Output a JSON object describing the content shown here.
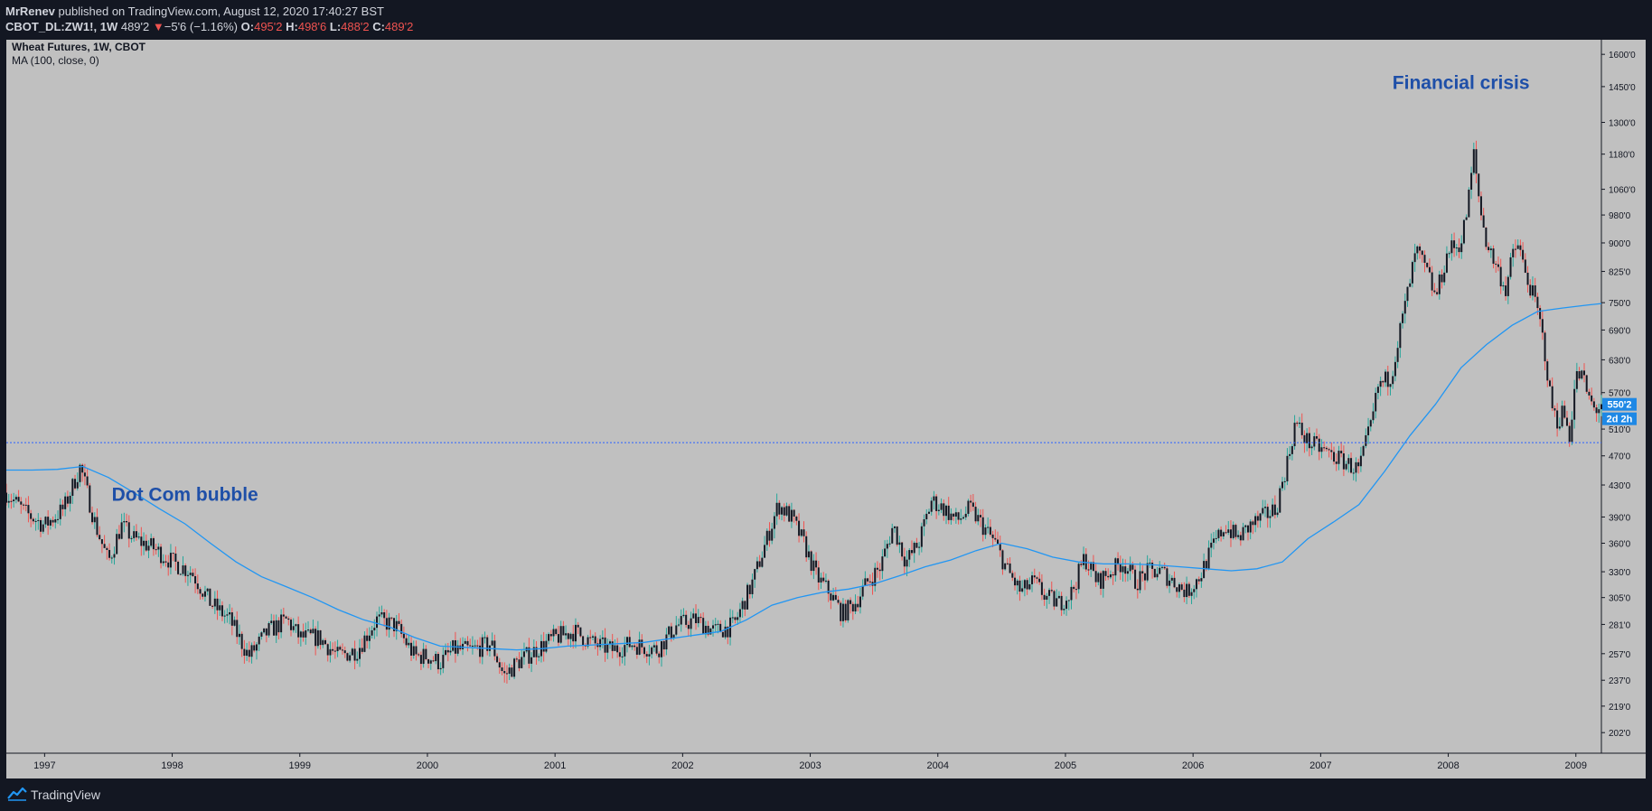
{
  "header": {
    "author": "MrRenev",
    "published_text": "published on TradingView.com, August 12, 2020 17:40:27 BST",
    "symbol": "CBOT_DL:ZW1!, 1W",
    "last_price": "489'2",
    "change_arrow": "▼",
    "change": "−5'6 (−1.16%)",
    "o_label": "O:",
    "o_value": "495'2",
    "h_label": "H:",
    "h_value": "498'6",
    "l_label": "L:",
    "l_value": "488'2",
    "c_label": "C:",
    "c_value": "489'2"
  },
  "legend": {
    "title": "Wheat Futures, 1W, CBOT",
    "indicator": "MA (100, close, 0)"
  },
  "footer": {
    "brand": "TradingView"
  },
  "colors": {
    "background": "#131722",
    "plot_bg": "#c0c0c0",
    "candle": "#131722",
    "candle_wick_up": "#26a69a",
    "candle_wick_down": "#ef5350",
    "ma_line": "#2196f3",
    "annotation": "#1e4fa8",
    "price_badge": "#1e88e5",
    "dotted_line": "#2962ff"
  },
  "chart_data": {
    "type": "candlestick",
    "title": "Wheat Futures, 1W, CBOT",
    "y_scale": "log",
    "y_ticks": [
      "1600'0",
      "1450'0",
      "1300'0",
      "1180'0",
      "1060'0",
      "980'0",
      "900'0",
      "825'0",
      "750'0",
      "690'0",
      "630'0",
      "570'0",
      "510'0",
      "470'0",
      "430'0",
      "390'0",
      "360'0",
      "330'0",
      "305'0",
      "281'0",
      "257'0",
      "237'0",
      "219'0",
      "202'0"
    ],
    "x_ticks": [
      "1997",
      "1998",
      "1999",
      "2000",
      "2001",
      "2002",
      "2003",
      "2004",
      "2005",
      "2006",
      "2007",
      "2008",
      "2009"
    ],
    "x_range": [
      1996.7,
      2009.2
    ],
    "y_range": [
      195,
      1650
    ],
    "current_price_line": 489.25,
    "price_badge_value": "550'2",
    "countdown_badge": "2d 2h",
    "annotations": [
      {
        "text": "Dot Com bubble",
        "x": 1998.1,
        "y": 410
      },
      {
        "text": "Financial crisis",
        "x": 2008.1,
        "y": 1440
      }
    ],
    "close_series": [
      [
        1996.7,
        420
      ],
      [
        1996.85,
        395
      ],
      [
        1997.0,
        380
      ],
      [
        1997.15,
        400
      ],
      [
        1997.28,
        455
      ],
      [
        1997.4,
        380
      ],
      [
        1997.5,
        340
      ],
      [
        1997.6,
        380
      ],
      [
        1997.7,
        365
      ],
      [
        1997.85,
        355
      ],
      [
        1998.0,
        340
      ],
      [
        1998.15,
        330
      ],
      [
        1998.3,
        300
      ],
      [
        1998.45,
        285
      ],
      [
        1998.6,
        255
      ],
      [
        1998.75,
        275
      ],
      [
        1998.9,
        285
      ],
      [
        1999.0,
        270
      ],
      [
        1999.15,
        270
      ],
      [
        1999.3,
        255
      ],
      [
        1999.45,
        260
      ],
      [
        1999.6,
        285
      ],
      [
        1999.75,
        280
      ],
      [
        1999.9,
        255
      ],
      [
        2000.0,
        255
      ],
      [
        2000.1,
        250
      ],
      [
        2000.2,
        260
      ],
      [
        2000.35,
        260
      ],
      [
        2000.5,
        265
      ],
      [
        2000.6,
        240
      ],
      [
        2000.7,
        250
      ],
      [
        2000.85,
        260
      ],
      [
        2001.0,
        270
      ],
      [
        2001.15,
        275
      ],
      [
        2001.3,
        265
      ],
      [
        2001.45,
        260
      ],
      [
        2001.6,
        265
      ],
      [
        2001.8,
        260
      ],
      [
        2001.95,
        280
      ],
      [
        2002.1,
        285
      ],
      [
        2002.25,
        275
      ],
      [
        2002.4,
        280
      ],
      [
        2002.55,
        320
      ],
      [
        2002.65,
        360
      ],
      [
        2002.75,
        405
      ],
      [
        2002.85,
        390
      ],
      [
        2002.95,
        360
      ],
      [
        2003.05,
        325
      ],
      [
        2003.15,
        310
      ],
      [
        2003.25,
        290
      ],
      [
        2003.35,
        300
      ],
      [
        2003.45,
        320
      ],
      [
        2003.55,
        335
      ],
      [
        2003.65,
        380
      ],
      [
        2003.75,
        340
      ],
      [
        2003.85,
        360
      ],
      [
        2003.95,
        410
      ],
      [
        2004.05,
        400
      ],
      [
        2004.15,
        385
      ],
      [
        2004.25,
        400
      ],
      [
        2004.35,
        380
      ],
      [
        2004.45,
        360
      ],
      [
        2004.55,
        330
      ],
      [
        2004.65,
        310
      ],
      [
        2004.75,
        320
      ],
      [
        2004.85,
        305
      ],
      [
        2004.95,
        300
      ],
      [
        2005.05,
        310
      ],
      [
        2005.15,
        345
      ],
      [
        2005.25,
        320
      ],
      [
        2005.35,
        330
      ],
      [
        2005.45,
        340
      ],
      [
        2005.55,
        320
      ],
      [
        2005.65,
        330
      ],
      [
        2005.75,
        330
      ],
      [
        2005.85,
        320
      ],
      [
        2005.95,
        310
      ],
      [
        2006.05,
        325
      ],
      [
        2006.15,
        355
      ],
      [
        2006.25,
        380
      ],
      [
        2006.35,
        365
      ],
      [
        2006.45,
        380
      ],
      [
        2006.55,
        390
      ],
      [
        2006.65,
        400
      ],
      [
        2006.75,
        470
      ],
      [
        2006.8,
        520
      ],
      [
        2006.9,
        490
      ],
      [
        2007.0,
        480
      ],
      [
        2007.1,
        470
      ],
      [
        2007.2,
        460
      ],
      [
        2007.3,
        450
      ],
      [
        2007.4,
        520
      ],
      [
        2007.45,
        580
      ],
      [
        2007.55,
        600
      ],
      [
        2007.6,
        660
      ],
      [
        2007.7,
        800
      ],
      [
        2007.75,
        880
      ],
      [
        2007.85,
        810
      ],
      [
        2007.9,
        760
      ],
      [
        2008.0,
        880
      ],
      [
        2008.1,
        900
      ],
      [
        2008.15,
        1000
      ],
      [
        2008.2,
        1180
      ],
      [
        2008.25,
        1000
      ],
      [
        2008.3,
        900
      ],
      [
        2008.4,
        820
      ],
      [
        2008.45,
        780
      ],
      [
        2008.5,
        860
      ],
      [
        2008.55,
        900
      ],
      [
        2008.6,
        820
      ],
      [
        2008.65,
        780
      ],
      [
        2008.7,
        730
      ],
      [
        2008.75,
        660
      ],
      [
        2008.8,
        560
      ],
      [
        2008.85,
        520
      ],
      [
        2008.9,
        540
      ],
      [
        2008.95,
        500
      ],
      [
        2009.0,
        600
      ],
      [
        2009.05,
        600
      ],
      [
        2009.1,
        560
      ],
      [
        2009.15,
        540
      ],
      [
        2009.2,
        550
      ]
    ],
    "ma_series": [
      [
        1996.7,
        450
      ],
      [
        1996.9,
        450
      ],
      [
        1997.1,
        451
      ],
      [
        1997.3,
        455
      ],
      [
        1997.5,
        440
      ],
      [
        1997.7,
        420
      ],
      [
        1997.9,
        400
      ],
      [
        1998.1,
        382
      ],
      [
        1998.3,
        360
      ],
      [
        1998.5,
        340
      ],
      [
        1998.7,
        325
      ],
      [
        1998.9,
        315
      ],
      [
        1999.1,
        305
      ],
      [
        1999.3,
        294
      ],
      [
        1999.5,
        285
      ],
      [
        1999.7,
        279
      ],
      [
        1999.9,
        270
      ],
      [
        2000.1,
        263
      ],
      [
        2000.3,
        262
      ],
      [
        2000.5,
        261
      ],
      [
        2000.7,
        260
      ],
      [
        2000.9,
        261
      ],
      [
        2001.1,
        263
      ],
      [
        2001.3,
        264
      ],
      [
        2001.5,
        265
      ],
      [
        2001.7,
        266
      ],
      [
        2001.9,
        269
      ],
      [
        2002.1,
        272
      ],
      [
        2002.3,
        275
      ],
      [
        2002.5,
        285
      ],
      [
        2002.7,
        298
      ],
      [
        2002.9,
        305
      ],
      [
        2003.1,
        310
      ],
      [
        2003.3,
        313
      ],
      [
        2003.5,
        318
      ],
      [
        2003.7,
        326
      ],
      [
        2003.9,
        335
      ],
      [
        2004.1,
        342
      ],
      [
        2004.3,
        352
      ],
      [
        2004.5,
        360
      ],
      [
        2004.7,
        354
      ],
      [
        2004.9,
        345
      ],
      [
        2005.1,
        340
      ],
      [
        2005.3,
        338
      ],
      [
        2005.5,
        338
      ],
      [
        2005.7,
        337
      ],
      [
        2005.9,
        335
      ],
      [
        2006.1,
        333
      ],
      [
        2006.3,
        331
      ],
      [
        2006.5,
        333
      ],
      [
        2006.7,
        340
      ],
      [
        2006.9,
        365
      ],
      [
        2007.1,
        384
      ],
      [
        2007.3,
        405
      ],
      [
        2007.5,
        448
      ],
      [
        2007.7,
        500
      ],
      [
        2007.9,
        550
      ],
      [
        2008.1,
        615
      ],
      [
        2008.3,
        660
      ],
      [
        2008.5,
        700
      ],
      [
        2008.7,
        730
      ],
      [
        2008.9,
        738
      ],
      [
        2009.1,
        745
      ],
      [
        2009.2,
        748
      ]
    ]
  }
}
